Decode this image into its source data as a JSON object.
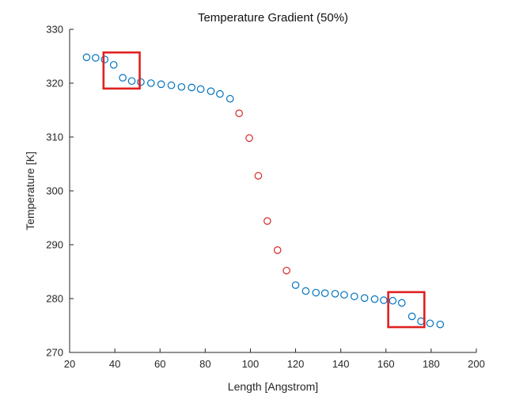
{
  "chart_data": {
    "type": "scatter",
    "title": "Temperature Gradient (50%)",
    "xlabel": "Length [Angstrom]",
    "ylabel": "Temperature [K]",
    "xlim": [
      20,
      200
    ],
    "ylim": [
      270,
      330
    ],
    "xticks": [
      20,
      40,
      60,
      80,
      100,
      120,
      140,
      160,
      180,
      200
    ],
    "yticks": [
      270,
      280,
      290,
      300,
      310,
      320,
      330
    ],
    "grid": false,
    "marker": "open-circle",
    "colors": {
      "cold": "#0072BD",
      "hot": "#D62728",
      "box": "#E02020"
    },
    "series": [
      {
        "color_key": "cold",
        "x": [
          27.5,
          31.5,
          35.5,
          39.5,
          43.5,
          47.5,
          51.5,
          56,
          60.5,
          65,
          69.5,
          74,
          78,
          82.5,
          86.5,
          91
        ],
        "y": [
          324.8,
          324.7,
          324.4,
          323.4,
          321.0,
          320.4,
          320.2,
          320.0,
          319.8,
          319.6,
          319.3,
          319.2,
          318.9,
          318.5,
          318.0,
          317.1
        ]
      },
      {
        "color_key": "hot",
        "x": [
          95,
          99.5,
          103.5,
          107.5,
          112,
          116
        ],
        "y": [
          314.4,
          309.8,
          302.8,
          294.4,
          289.0,
          285.2
        ]
      },
      {
        "color_key": "cold",
        "x": [
          120,
          124.5,
          129,
          133,
          137.5,
          141.5,
          146,
          150.5,
          155,
          159,
          163,
          167,
          171.5,
          175.5,
          179.5,
          184
        ],
        "y": [
          282.5,
          281.4,
          281.1,
          281.0,
          280.9,
          280.7,
          280.4,
          280.1,
          279.9,
          279.7,
          279.6,
          279.2,
          276.7,
          275.8,
          275.4,
          275.2
        ]
      }
    ],
    "annotations": [
      {
        "type": "rect",
        "color_key": "box",
        "x": [
          35,
          51
        ],
        "y": [
          319,
          325.7
        ]
      },
      {
        "type": "rect",
        "color_key": "box",
        "x": [
          161,
          177
        ],
        "y": [
          274.7,
          281.2
        ]
      }
    ]
  }
}
